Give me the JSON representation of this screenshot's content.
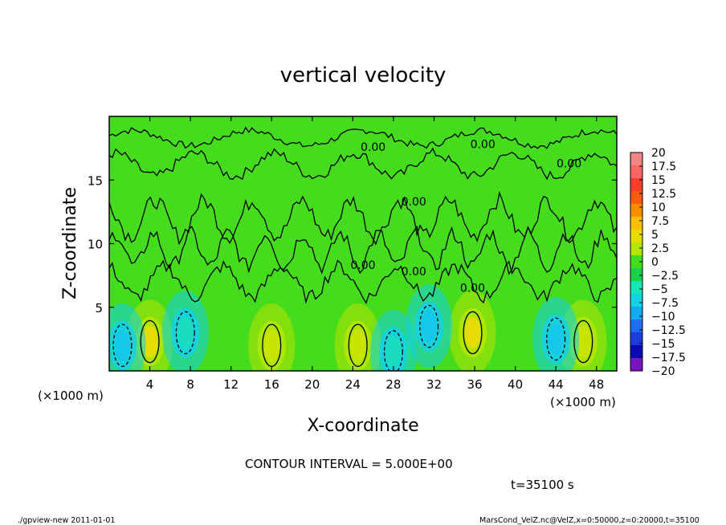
{
  "chart_data": {
    "type": "heatmap",
    "title": "vertical velocity",
    "xlabel": "X-coordinate",
    "ylabel": "Z-coordinate",
    "x_unit_label": "(×1000 m)",
    "y_unit_label": "(×1000 m)",
    "xlim": [
      0,
      50
    ],
    "ylim": [
      0,
      20
    ],
    "x_ticks": [
      4,
      8,
      12,
      16,
      20,
      24,
      28,
      32,
      36,
      40,
      44,
      48
    ],
    "y_ticks": [
      5,
      10,
      15
    ],
    "contour_interval_text": "CONTOUR INTERVAL = 5.000E+00",
    "time_text": "t=35100 s",
    "contour_labels": [
      {
        "text": "0.00",
        "x": 26.0,
        "z": 17.3
      },
      {
        "text": "0.00",
        "x": 36.8,
        "z": 17.5
      },
      {
        "text": "0.00",
        "x": 45.3,
        "z": 16.0
      },
      {
        "text": "0.00",
        "x": 30.0,
        "z": 13.0
      },
      {
        "text": "0.00",
        "x": 25.0,
        "z": 8.0
      },
      {
        "text": "0.00",
        "x": 30.0,
        "z": 7.5
      },
      {
        "text": "0.00",
        "x": 35.8,
        "z": 6.2
      }
    ],
    "colorbar": {
      "levels": [
        20,
        17.5,
        15,
        12.5,
        10,
        7.5,
        5,
        2.5,
        0,
        -2.5,
        -5,
        -7.5,
        -10,
        -12.5,
        -15,
        -17.5,
        -20
      ],
      "colors": [
        "#f08585",
        "#fa6666",
        "#fa3c2a",
        "#fb5a10",
        "#fb8c00",
        "#fbbe00",
        "#e6dc00",
        "#b4e600",
        "#46dc1e",
        "#19d24a",
        "#14e6b4",
        "#14d2e6",
        "#14aaf0",
        "#1e6ef0",
        "#1e3cdc",
        "#0a0ab4",
        "#7814be"
      ]
    },
    "features": [
      {
        "kind": "updraft",
        "x": 4.0,
        "z": 2.3,
        "value": 7.5
      },
      {
        "kind": "updraft",
        "x": 16.0,
        "z": 2.0,
        "value": 5
      },
      {
        "kind": "updraft",
        "x": 24.5,
        "z": 2.0,
        "value": 5
      },
      {
        "kind": "updraft",
        "x": 35.8,
        "z": 3.0,
        "value": 7.5
      },
      {
        "kind": "updraft",
        "x": 46.7,
        "z": 2.3,
        "value": 5
      },
      {
        "kind": "downdraft",
        "x": 1.3,
        "z": 2.0,
        "value": -7.5
      },
      {
        "kind": "downdraft",
        "x": 7.5,
        "z": 3.0,
        "value": -5
      },
      {
        "kind": "downdraft",
        "x": 31.5,
        "z": 3.5,
        "value": -7.5
      },
      {
        "kind": "downdraft",
        "x": 44.0,
        "z": 2.5,
        "value": -7.5
      },
      {
        "kind": "downdraft",
        "x": 28.0,
        "z": 1.5,
        "value": -5
      }
    ]
  },
  "footer": {
    "left": "./gpview-new   2011-01-01",
    "right": "MarsCond_VelZ.nc@VelZ,x=0:50000,z=0:20000,t=35100"
  }
}
